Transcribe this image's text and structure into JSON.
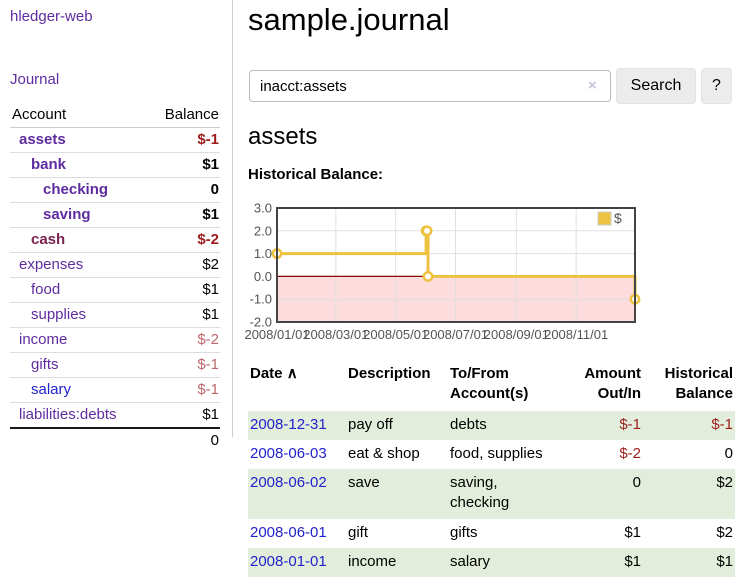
{
  "app": {
    "brand": "hledger-web",
    "nav_journal": "Journal"
  },
  "colors": {
    "link_purple": "#5f2ca0",
    "link_blue": "#2222cc",
    "link_maroon": "#7a2250",
    "negative_strong": "#9e1c1c",
    "negative_soft": "#bd686d",
    "row_green": "#e2eedb",
    "series_yellow": "#edc240",
    "chart_negative_fill": "#fcdcdc",
    "chart_zero_line": "#8b0000",
    "chart_border": "#444444",
    "chart_grid": "#e0e0e0",
    "axis_text": "#545454"
  },
  "sidebar": {
    "header": {
      "account": "Account",
      "balance": "Balance"
    },
    "accounts": [
      {
        "name": "assets",
        "balance": "$-1"
      },
      {
        "name": "bank",
        "balance": "$1"
      },
      {
        "name": "checking",
        "balance": "0"
      },
      {
        "name": "saving",
        "balance": "$1"
      },
      {
        "name": "cash",
        "balance": "$-2"
      },
      {
        "name": "expenses",
        "balance": "$2"
      },
      {
        "name": "food",
        "balance": "$1"
      },
      {
        "name": "supplies",
        "balance": "$1"
      },
      {
        "name": "income",
        "balance": "$-2"
      },
      {
        "name": "gifts",
        "balance": "$-1"
      },
      {
        "name": "salary",
        "balance": "$-1"
      },
      {
        "name": "liabilities:debts",
        "balance": "$1"
      }
    ],
    "total": "0"
  },
  "main": {
    "title": "sample.journal",
    "search": {
      "value": "inacct:assets",
      "clear_icon": "×",
      "button": "Search",
      "help_button": "?"
    },
    "account_heading": "assets",
    "chart_label": "Historical Balance:"
  },
  "chart_data": {
    "type": "line",
    "step": true,
    "title": "Historical Balance:",
    "x_range": [
      "2008-01-01",
      "2008-12-31"
    ],
    "ylim": [
      -2,
      3
    ],
    "y_ticks": [
      "3.0",
      "2.0",
      "1.0",
      "0.0",
      "-1.0",
      "-2.0"
    ],
    "x_ticks": [
      "2008/01/01",
      "2008/03/01",
      "2008/05/01",
      "2008/07/01",
      "2008/09/01",
      "2008/11/01"
    ],
    "series": [
      {
        "name": "$",
        "color": "#edc240",
        "points": [
          [
            "2008-01-01",
            1
          ],
          [
            "2008-06-01",
            2
          ],
          [
            "2008-06-02",
            2
          ],
          [
            "2008-06-03",
            0
          ],
          [
            "2008-12-31",
            -1
          ]
        ]
      }
    ],
    "negative_region": {
      "below": 0,
      "fill": "#fcdcdc",
      "line_color": "#8b0000"
    },
    "legend": {
      "label": "$",
      "position": "top-right"
    },
    "grid": true
  },
  "register": {
    "headers": {
      "date": "Date",
      "description": "Description",
      "accounts": "To/From Account(s)",
      "amount": "Amount Out/In",
      "balance": "Historical Balance"
    },
    "sort_icon": "∧",
    "rows": [
      {
        "date": "2008-12-31",
        "description": "pay off",
        "accounts": "debts",
        "amount": "$-1",
        "balance": "$-1"
      },
      {
        "date": "2008-06-03",
        "description": "eat & shop",
        "accounts": "food, supplies",
        "amount": "$-2",
        "balance": "0"
      },
      {
        "date": "2008-06-02",
        "description": "save",
        "accounts": "saving, checking",
        "amount": "0",
        "balance": "$2"
      },
      {
        "date": "2008-06-01",
        "description": "gift",
        "accounts": "gifts",
        "amount": "$1",
        "balance": "$2"
      },
      {
        "date": "2008-01-01",
        "description": "income",
        "accounts": "salary",
        "amount": "$1",
        "balance": "$1"
      }
    ]
  }
}
